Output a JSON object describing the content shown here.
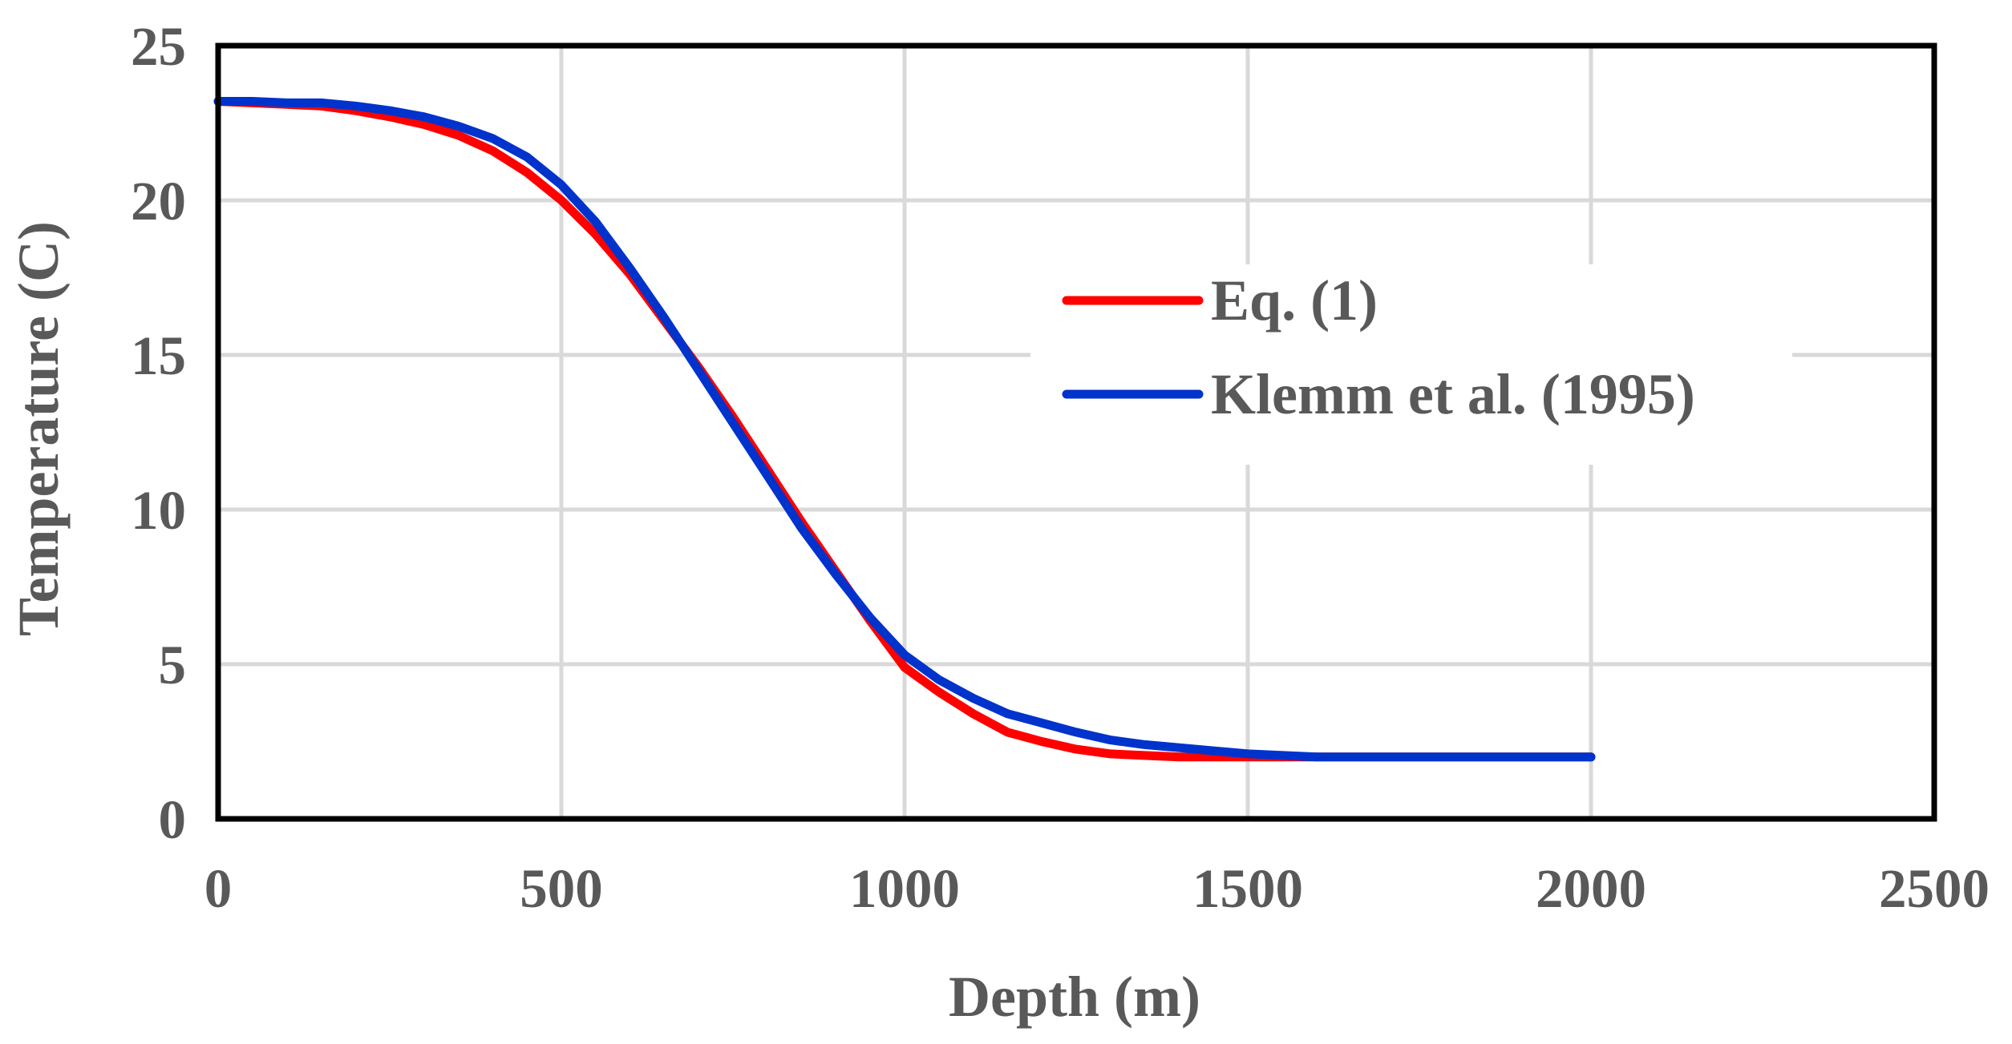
{
  "chart_data": {
    "type": "line",
    "title": "",
    "xlabel": "Depth (m)",
    "ylabel": "Temperature (C)",
    "xlim": [
      0,
      2500
    ],
    "ylim": [
      0,
      25
    ],
    "xticks": [
      0,
      500,
      1000,
      1500,
      2000,
      2500
    ],
    "yticks": [
      0,
      5,
      10,
      15,
      20,
      25
    ],
    "grid": true,
    "legend_position": "center-right",
    "series": [
      {
        "name": "Eq. (1)",
        "color": "#ff0000",
        "x": [
          0,
          50,
          100,
          150,
          200,
          250,
          300,
          350,
          400,
          450,
          500,
          550,
          600,
          650,
          700,
          750,
          800,
          850,
          900,
          950,
          1000,
          1050,
          1100,
          1150,
          1200,
          1250,
          1300,
          1350,
          1400,
          1450,
          1500,
          1600,
          1700,
          1800,
          1900,
          2000
        ],
        "y": [
          23.2,
          23.15,
          23.1,
          23.05,
          22.9,
          22.7,
          22.45,
          22.1,
          21.6,
          20.9,
          20.0,
          18.9,
          17.6,
          16.1,
          14.6,
          13.0,
          11.3,
          9.6,
          8.0,
          6.4,
          4.9,
          4.1,
          3.4,
          2.8,
          2.5,
          2.25,
          2.1,
          2.05,
          2.0,
          2.0,
          2.0,
          2.0,
          2.0,
          2.0,
          2.0,
          2.0
        ]
      },
      {
        "name": "Klemm et al. (1995)",
        "color": "#0033cc",
        "x": [
          0,
          50,
          100,
          150,
          200,
          250,
          300,
          350,
          400,
          450,
          500,
          550,
          600,
          650,
          700,
          750,
          800,
          850,
          900,
          950,
          1000,
          1050,
          1100,
          1150,
          1200,
          1250,
          1300,
          1350,
          1400,
          1450,
          1500,
          1600,
          1700,
          1800,
          1900,
          2000
        ],
        "y": [
          23.2,
          23.2,
          23.15,
          23.15,
          23.05,
          22.9,
          22.7,
          22.4,
          22.0,
          21.4,
          20.5,
          19.3,
          17.8,
          16.2,
          14.5,
          12.8,
          11.1,
          9.4,
          7.9,
          6.5,
          5.3,
          4.5,
          3.9,
          3.4,
          3.1,
          2.8,
          2.55,
          2.4,
          2.3,
          2.2,
          2.1,
          2.0,
          2.0,
          2.0,
          2.0,
          2.0
        ]
      }
    ]
  }
}
